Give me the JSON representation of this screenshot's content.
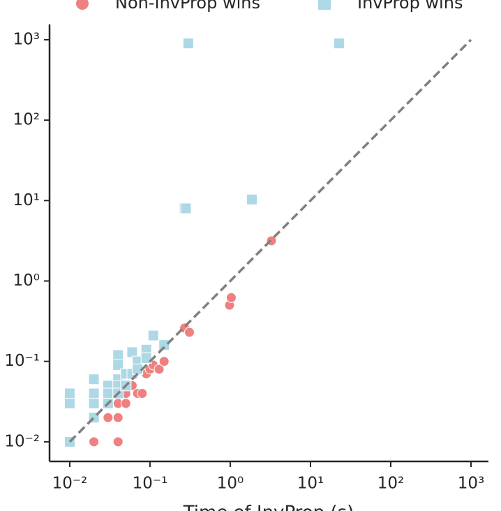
{
  "chart_data": {
    "type": "scatter",
    "x_label": "Time of InvProp (s)",
    "log_x": true,
    "log_y": true,
    "xlim": [
      0.0056,
      1650
    ],
    "ylim": [
      0.0057,
      1550
    ],
    "xticks": [
      {
        "value": 0.01,
        "label": "10⁻²"
      },
      {
        "value": 0.1,
        "label": "10⁻¹"
      },
      {
        "value": 1,
        "label": "10⁰"
      },
      {
        "value": 10,
        "label": "10¹"
      },
      {
        "value": 100,
        "label": "10²"
      },
      {
        "value": 1000,
        "label": "10³"
      }
    ],
    "yticks": [
      {
        "value": 0.01,
        "label": "10⁻²"
      },
      {
        "value": 0.1,
        "label": "10⁻¹"
      },
      {
        "value": 1,
        "label": "10⁰"
      },
      {
        "value": 10,
        "label": "10¹"
      },
      {
        "value": 100,
        "label": "10²"
      },
      {
        "value": 1000,
        "label": "10³"
      }
    ],
    "reference_line": [
      0.01,
      1000
    ],
    "legend": "top",
    "series": [
      {
        "name": "Non-InvProp wins",
        "color": "#f08080",
        "marker": "circle",
        "x": [
          0.02,
          0.04,
          0.03,
          0.04,
          0.04,
          0.05,
          0.05,
          0.06,
          0.07,
          0.08,
          0.09,
          0.1,
          0.11,
          0.13,
          0.15,
          0.27,
          0.31,
          0.98,
          1.03,
          3.26
        ],
        "values": [
          0.01,
          0.01,
          0.02,
          0.02,
          0.03,
          0.03,
          0.04,
          0.05,
          0.04,
          0.04,
          0.07,
          0.08,
          0.09,
          0.08,
          0.1,
          0.26,
          0.23,
          0.5,
          0.62,
          3.16
        ]
      },
      {
        "name": "InvProp wins",
        "color": "#add8e6",
        "marker": "square",
        "x": [
          0.01,
          0.01,
          0.01,
          0.02,
          0.02,
          0.02,
          0.02,
          0.03,
          0.03,
          0.03,
          0.04,
          0.04,
          0.04,
          0.04,
          0.04,
          0.05,
          0.05,
          0.06,
          0.06,
          0.07,
          0.07,
          0.09,
          0.09,
          0.11,
          0.15,
          0.27,
          0.28,
          0.3,
          1.86,
          22.7
        ],
        "values": [
          0.01,
          0.04,
          0.03,
          0.06,
          0.04,
          0.03,
          0.02,
          0.05,
          0.04,
          0.03,
          0.12,
          0.09,
          0.06,
          0.05,
          0.04,
          0.05,
          0.07,
          0.13,
          0.07,
          0.1,
          0.08,
          0.14,
          0.11,
          0.21,
          0.16,
          8.1,
          8,
          900,
          10.3,
          900
        ]
      }
    ]
  }
}
